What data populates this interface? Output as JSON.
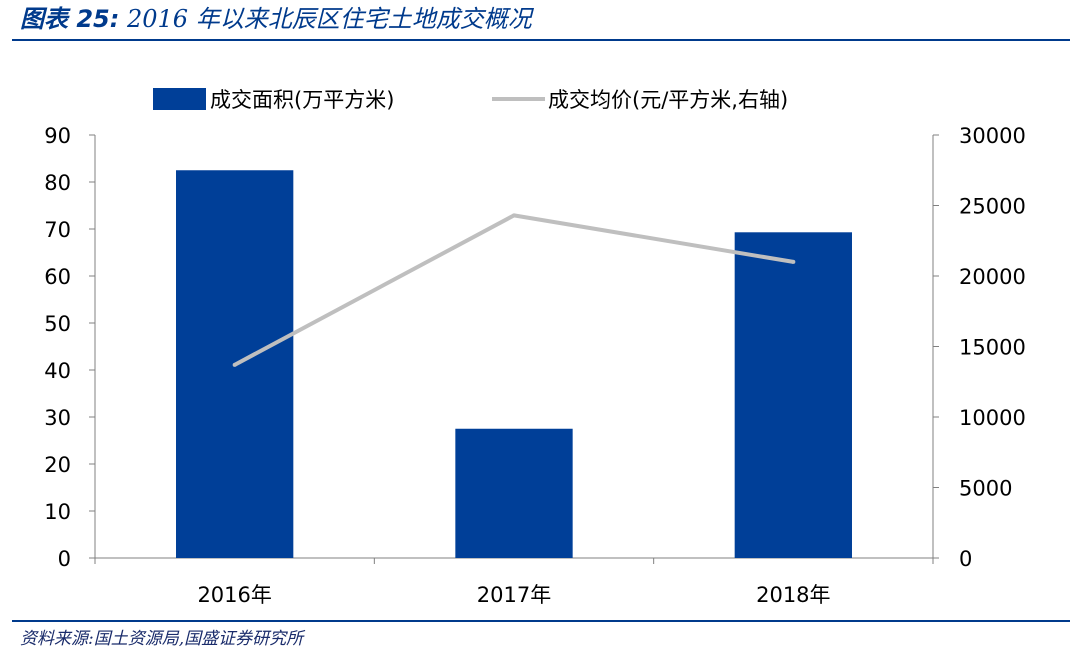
{
  "header": {
    "fig_label": "图表 25:",
    "title": "2016 年以来北辰区住宅土地成交概况"
  },
  "footer": {
    "source": "资料来源:国土资源局,国盛证券研究所"
  },
  "colors": {
    "bar": "#003f98",
    "line": "#bfbfbf",
    "rule": "#003a8c"
  },
  "chart_data": {
    "type": "bar",
    "categories": [
      "2016年",
      "2017年",
      "2018年"
    ],
    "series": [
      {
        "name": "成交面积(万平方米)",
        "type": "bar",
        "axis": "left",
        "values": [
          82.5,
          27.5,
          69.3
        ]
      },
      {
        "name": "成交均价(元/平方米,右轴)",
        "type": "line",
        "axis": "right",
        "values": [
          13700,
          24300,
          21000
        ]
      }
    ],
    "y_left": {
      "min": 0,
      "max": 90,
      "ticks": [
        0,
        10,
        20,
        30,
        40,
        50,
        60,
        70,
        80,
        90
      ]
    },
    "y_right": {
      "min": 0,
      "max": 30000,
      "ticks": [
        0,
        5000,
        10000,
        15000,
        20000,
        25000,
        30000
      ]
    },
    "legend": "top",
    "grid": false
  }
}
